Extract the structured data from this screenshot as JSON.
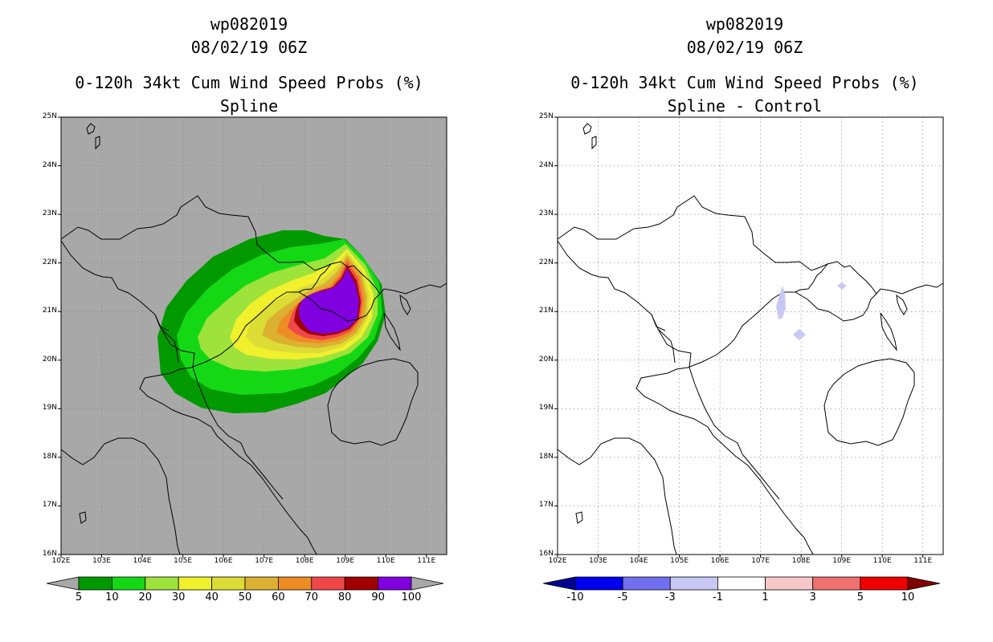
{
  "left_panel": {
    "title_line1": "wp082019",
    "title_line2": "08/02/19 06Z",
    "title_line3": "0-120h 34kt Cum Wind Speed Probs (%)",
    "title_line4": "Spline",
    "background_color": "#a8a8a8",
    "contour_levels": [
      {
        "min": 5,
        "color": "#009a00"
      },
      {
        "min": 10,
        "color": "#15d815"
      },
      {
        "min": 20,
        "color": "#9ee23c"
      },
      {
        "min": 30,
        "color": "#f0f02c"
      },
      {
        "min": 40,
        "color": "#dcdc36"
      },
      {
        "min": 50,
        "color": "#dcb030"
      },
      {
        "min": 60,
        "color": "#ee8c24"
      },
      {
        "min": 70,
        "color": "#f04848"
      },
      {
        "min": 80,
        "color": "#a00000"
      },
      {
        "min": 90,
        "color": "#8000e0"
      }
    ],
    "colorbar": {
      "labels": [
        "5",
        "10",
        "20",
        "30",
        "40",
        "50",
        "60",
        "70",
        "80",
        "90",
        "100"
      ],
      "colors": [
        "#009a00",
        "#15d815",
        "#9ee23c",
        "#f0f02c",
        "#dcdc36",
        "#dcb030",
        "#ee8c24",
        "#f04848",
        "#a00000",
        "#8000e0"
      ],
      "end_color": "#a8a8a8"
    }
  },
  "right_panel": {
    "title_line1": "wp082019",
    "title_line2": "08/02/19 06Z",
    "title_line3": "0-120h 34kt Cum Wind Speed Probs (%)",
    "title_line4": "Spline - Control",
    "background_color": "#ffffff",
    "difference_color": "#c8c8f5",
    "colorbar": {
      "labels": [
        "-10",
        "-5",
        "-3",
        "-1",
        "1",
        "3",
        "5",
        "10"
      ],
      "colors": [
        "#0000f0",
        "#7070f0",
        "#c8c8f5",
        "#ffffff",
        "#f8c8c8",
        "#f07070",
        "#f00000"
      ],
      "left_end_color": "#000090",
      "right_end_color": "#800000"
    }
  },
  "axes": {
    "lon_min": 102,
    "lon_max": 111.5,
    "lat_min": 16,
    "lat_max": 25,
    "x_ticks": [
      "102E",
      "103E",
      "104E",
      "105E",
      "106E",
      "107E",
      "108E",
      "109E",
      "110E",
      "111E"
    ],
    "y_ticks": [
      "16N",
      "17N",
      "18N",
      "19N",
      "20N",
      "21N",
      "22N",
      "23N",
      "24N",
      "25N"
    ]
  }
}
